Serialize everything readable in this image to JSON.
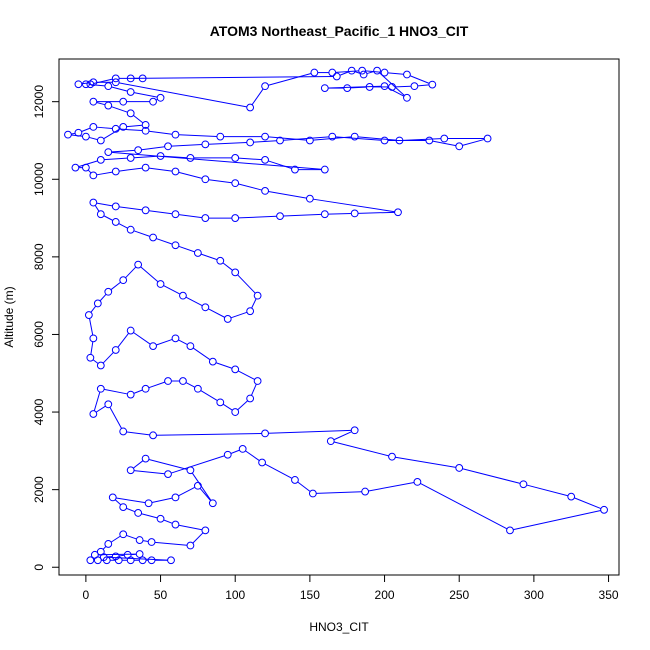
{
  "chart_data": {
    "type": "scatter",
    "title": "ATOM3 Northeast_Pacific_1 HNO3_CIT",
    "xlabel": "HNO3_CIT",
    "ylabel": "Altitude (m)",
    "xlim": [
      -18,
      357
    ],
    "ylim": [
      -200,
      13100
    ],
    "x_ticks": [
      0,
      50,
      100,
      150,
      200,
      250,
      300,
      350
    ],
    "y_ticks": [
      0,
      2000,
      4000,
      6000,
      8000,
      10000,
      12000
    ],
    "grid": false,
    "legend": "none",
    "series": [
      {
        "color": "#0000ff",
        "marker": "open-circle",
        "line": true,
        "points": [
          [
            3,
            180
          ],
          [
            8,
            180
          ],
          [
            14,
            180
          ],
          [
            22,
            180
          ],
          [
            30,
            180
          ],
          [
            38,
            180
          ],
          [
            44,
            180
          ],
          [
            57,
            180
          ],
          [
            12,
            260
          ],
          [
            20,
            280
          ],
          [
            28,
            320
          ],
          [
            36,
            340
          ],
          [
            6,
            320
          ],
          [
            10,
            400
          ],
          [
            15,
            600
          ],
          [
            25,
            850
          ],
          [
            36,
            700
          ],
          [
            44,
            650
          ],
          [
            70,
            560
          ],
          [
            80,
            950
          ],
          [
            60,
            1100
          ],
          [
            50,
            1250
          ],
          [
            35,
            1400
          ],
          [
            25,
            1550
          ],
          [
            18,
            1800
          ],
          [
            42,
            1650
          ],
          [
            60,
            1800
          ],
          [
            75,
            2100
          ],
          [
            85,
            1650
          ],
          [
            70,
            2500
          ],
          [
            40,
            2800
          ],
          [
            30,
            2500
          ],
          [
            55,
            2400
          ],
          [
            95,
            2900
          ],
          [
            105,
            3050
          ],
          [
            118,
            2700
          ],
          [
            140,
            2250
          ],
          [
            152,
            1900
          ],
          [
            187,
            1950
          ],
          [
            222,
            2200
          ],
          [
            284,
            950
          ],
          [
            347,
            1480
          ],
          [
            325,
            1820
          ],
          [
            293,
            2140
          ],
          [
            250,
            2560
          ],
          [
            205,
            2850
          ],
          [
            164,
            3250
          ],
          [
            180,
            3530
          ],
          [
            120,
            3450
          ],
          [
            45,
            3400
          ],
          [
            25,
            3500
          ],
          [
            15,
            4200
          ],
          [
            5,
            3950
          ],
          [
            10,
            4600
          ],
          [
            30,
            4450
          ],
          [
            40,
            4600
          ],
          [
            55,
            4800
          ],
          [
            65,
            4800
          ],
          [
            75,
            4600
          ],
          [
            90,
            4250
          ],
          [
            100,
            4000
          ],
          [
            110,
            4350
          ],
          [
            115,
            4800
          ],
          [
            100,
            5100
          ],
          [
            85,
            5300
          ],
          [
            70,
            5700
          ],
          [
            60,
            5900
          ],
          [
            45,
            5700
          ],
          [
            30,
            6100
          ],
          [
            20,
            5600
          ],
          [
            10,
            5200
          ],
          [
            3,
            5400
          ],
          [
            5,
            5900
          ],
          [
            2,
            6500
          ],
          [
            8,
            6800
          ],
          [
            15,
            7100
          ],
          [
            25,
            7400
          ],
          [
            35,
            7800
          ],
          [
            50,
            7300
          ],
          [
            65,
            7000
          ],
          [
            80,
            6700
          ],
          [
            95,
            6400
          ],
          [
            110,
            6600
          ],
          [
            115,
            7000
          ],
          [
            100,
            7600
          ],
          [
            90,
            7900
          ],
          [
            75,
            8100
          ],
          [
            60,
            8300
          ],
          [
            45,
            8500
          ],
          [
            30,
            8700
          ],
          [
            20,
            8900
          ],
          [
            10,
            9100
          ],
          [
            5,
            9400
          ],
          [
            20,
            9300
          ],
          [
            40,
            9200
          ],
          [
            60,
            9100
          ],
          [
            80,
            9000
          ],
          [
            100,
            9000
          ],
          [
            130,
            9050
          ],
          [
            160,
            9100
          ],
          [
            180,
            9120
          ],
          [
            209,
            9150
          ],
          [
            150,
            9500
          ],
          [
            120,
            9700
          ],
          [
            100,
            9900
          ],
          [
            80,
            10000
          ],
          [
            60,
            10200
          ],
          [
            40,
            10300
          ],
          [
            20,
            10200
          ],
          [
            5,
            10100
          ],
          [
            0,
            10300
          ],
          [
            -7,
            10300
          ],
          [
            10,
            10500
          ],
          [
            30,
            10550
          ],
          [
            50,
            10600
          ],
          [
            70,
            10550
          ],
          [
            100,
            10550
          ],
          [
            120,
            10500
          ],
          [
            140,
            10250
          ],
          [
            160,
            10250
          ],
          [
            15,
            10700
          ],
          [
            35,
            10750
          ],
          [
            55,
            10850
          ],
          [
            80,
            10900
          ],
          [
            110,
            10950
          ],
          [
            130,
            11000
          ],
          [
            165,
            11100
          ],
          [
            200,
            11000
          ],
          [
            230,
            11000
          ],
          [
            250,
            10850
          ],
          [
            269,
            11050
          ],
          [
            240,
            11050
          ],
          [
            210,
            11000
          ],
          [
            180,
            11100
          ],
          [
            150,
            11000
          ],
          [
            120,
            11100
          ],
          [
            90,
            11100
          ],
          [
            60,
            11150
          ],
          [
            40,
            11250
          ],
          [
            20,
            11300
          ],
          [
            5,
            11350
          ],
          [
            -5,
            11200
          ],
          [
            -12,
            11150
          ],
          [
            0,
            11100
          ],
          [
            10,
            11000
          ],
          [
            25,
            11350
          ],
          [
            40,
            11400
          ],
          [
            30,
            11700
          ],
          [
            15,
            11900
          ],
          [
            5,
            12000
          ],
          [
            25,
            12000
          ],
          [
            45,
            12000
          ],
          [
            50,
            12100
          ],
          [
            30,
            12250
          ],
          [
            15,
            12400
          ],
          [
            0,
            12450
          ],
          [
            -5,
            12450
          ],
          [
            5,
            12500
          ],
          [
            20,
            12500
          ],
          [
            110,
            11850
          ],
          [
            120,
            12400
          ],
          [
            153,
            12750
          ],
          [
            165,
            12750
          ],
          [
            185,
            12800
          ],
          [
            200,
            12750
          ],
          [
            215,
            12700
          ],
          [
            232,
            12440
          ],
          [
            220,
            12400
          ],
          [
            205,
            12380
          ],
          [
            190,
            12380
          ],
          [
            175,
            12350
          ],
          [
            160,
            12350
          ],
          [
            200,
            12400
          ],
          [
            215,
            12100
          ],
          [
            195,
            12800
          ],
          [
            186,
            12700
          ],
          [
            178,
            12800
          ],
          [
            168,
            12650
          ],
          [
            30,
            12600
          ],
          [
            38,
            12600
          ],
          [
            20,
            12600
          ],
          [
            3,
            12450
          ]
        ]
      }
    ]
  }
}
